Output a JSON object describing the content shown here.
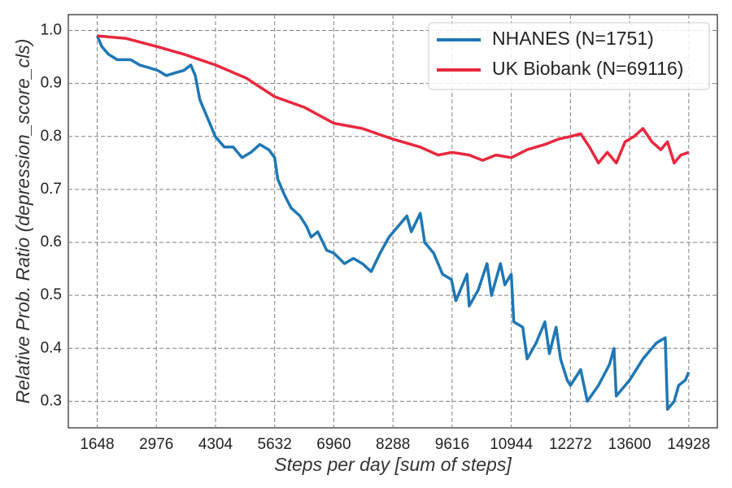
{
  "chart_data": {
    "type": "line",
    "xlabel": "Steps per day [sum of steps]",
    "ylabel": "Relative Prob. Ratio (depression_score_cls)",
    "xlim": [
      1000,
      15570
    ],
    "ylim": [
      0.25,
      1.03
    ],
    "xticks": [
      1648,
      2976,
      4304,
      5632,
      6960,
      8288,
      9616,
      10944,
      12272,
      13600,
      14928
    ],
    "yticks": [
      {
        "value": 0.3,
        "label": "0.3"
      },
      {
        "value": 0.4,
        "label": "0.4"
      },
      {
        "value": 0.5,
        "label": "0.5"
      },
      {
        "value": 0.6,
        "label": "0.6"
      },
      {
        "value": 0.7,
        "label": "0.7"
      },
      {
        "value": 0.8,
        "label": "0.8"
      },
      {
        "value": 0.9,
        "label": "0.9"
      },
      {
        "value": 1.0,
        "label": "1.0"
      }
    ],
    "grid": true,
    "legend": "upper right",
    "series": [
      {
        "name": "NHANES (N=1751)",
        "color": "#1f77b4",
        "x": [
          1648,
          1750,
          1900,
          2100,
          2400,
          2600,
          2800,
          3000,
          3200,
          3400,
          3600,
          3750,
          3850,
          3950,
          4050,
          4200,
          4300,
          4500,
          4700,
          4900,
          5100,
          5300,
          5500,
          5632,
          5700,
          5850,
          6000,
          6200,
          6350,
          6450,
          6600,
          6800,
          6960,
          7200,
          7400,
          7600,
          7800,
          8000,
          8200,
          8400,
          8600,
          8700,
          8900,
          9000,
          9200,
          9400,
          9600,
          9700,
          9850,
          9950,
          10000,
          10200,
          10400,
          10500,
          10700,
          10800,
          10944,
          11000,
          11200,
          11300,
          11500,
          11700,
          11800,
          11950,
          12050,
          12200,
          12272,
          12500,
          12650,
          12900,
          13150,
          13250,
          13300,
          13600,
          13900,
          14200,
          14400,
          14450,
          14600,
          14700,
          14850,
          14928
        ],
        "values": [
          0.99,
          0.97,
          0.955,
          0.945,
          0.945,
          0.935,
          0.93,
          0.925,
          0.915,
          0.92,
          0.925,
          0.935,
          0.915,
          0.87,
          0.85,
          0.82,
          0.8,
          0.78,
          0.78,
          0.76,
          0.77,
          0.785,
          0.775,
          0.76,
          0.72,
          0.69,
          0.665,
          0.65,
          0.63,
          0.61,
          0.62,
          0.585,
          0.58,
          0.56,
          0.57,
          0.56,
          0.545,
          0.58,
          0.61,
          0.63,
          0.65,
          0.62,
          0.655,
          0.6,
          0.58,
          0.54,
          0.53,
          0.49,
          0.52,
          0.54,
          0.48,
          0.51,
          0.56,
          0.5,
          0.56,
          0.52,
          0.54,
          0.45,
          0.44,
          0.38,
          0.41,
          0.45,
          0.39,
          0.44,
          0.38,
          0.34,
          0.33,
          0.36,
          0.3,
          0.33,
          0.37,
          0.4,
          0.31,
          0.34,
          0.38,
          0.41,
          0.42,
          0.285,
          0.3,
          0.33,
          0.34,
          0.355
        ]
      },
      {
        "name": "UK Biobank (N=69116)",
        "color": "#e8283e",
        "x": [
          1648,
          2300,
          2976,
          3600,
          4304,
          5000,
          5632,
          6300,
          6960,
          7600,
          8288,
          8900,
          9300,
          9616,
          10000,
          10300,
          10600,
          10944,
          11300,
          11700,
          12000,
          12272,
          12500,
          12700,
          12900,
          13100,
          13300,
          13500,
          13700,
          13900,
          14100,
          14300,
          14450,
          14600,
          14750,
          14928
        ],
        "values": [
          0.99,
          0.985,
          0.97,
          0.955,
          0.935,
          0.91,
          0.875,
          0.855,
          0.825,
          0.815,
          0.795,
          0.78,
          0.765,
          0.77,
          0.765,
          0.755,
          0.765,
          0.76,
          0.775,
          0.785,
          0.795,
          0.8,
          0.805,
          0.78,
          0.75,
          0.77,
          0.75,
          0.79,
          0.8,
          0.815,
          0.79,
          0.775,
          0.79,
          0.75,
          0.765,
          0.77
        ]
      }
    ]
  }
}
